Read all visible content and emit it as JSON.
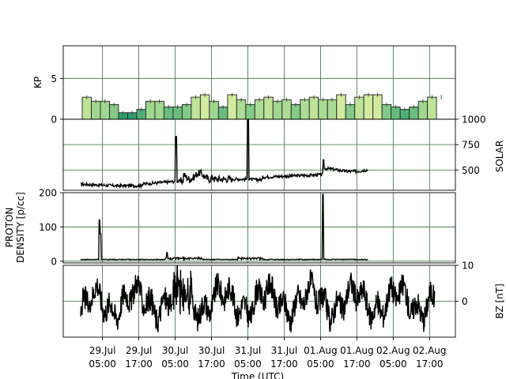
{
  "chart_data": [
    {
      "type": "bar",
      "ylabel": "KP",
      "ylim": [
        0,
        9
      ],
      "yticks": [
        0,
        5
      ],
      "grid": true,
      "bar_interval_hours": 3,
      "start_label": "28.Jul 21:00",
      "values": [
        2.7,
        2.2,
        2.2,
        1.8,
        0.8,
        0.8,
        1.2,
        2.2,
        2.2,
        1.5,
        1.5,
        1.8,
        2.7,
        3.0,
        2.2,
        1.5,
        3.0,
        2.4,
        1.8,
        2.4,
        2.7,
        2.2,
        2.4,
        1.8,
        2.4,
        2.7,
        2.4,
        2.4,
        3.0,
        1.8,
        2.7,
        3.0,
        3.0,
        1.8,
        1.5,
        1.2,
        1.5,
        2.2,
        2.7
      ],
      "color_scale": {
        "low": "#2e9d6e",
        "mid": "#8fd18a",
        "high": "#d8eda0"
      }
    },
    {
      "type": "line",
      "ylabel": "SOLAR",
      "ylim": [
        300,
        1000
      ],
      "yticks": [
        500,
        750,
        1000
      ],
      "grid": true,
      "color": "#000000"
    },
    {
      "type": "line",
      "ylabel": "PROTON\nDENSITY [p/cc]",
      "ylim": [
        -5,
        200
      ],
      "yticks": [
        0,
        100,
        200
      ],
      "grid": true,
      "color": "#000000"
    },
    {
      "type": "line",
      "ylabel": "BZ [nT]",
      "ylim": [
        -10,
        10
      ],
      "yticks": [
        0,
        10
      ],
      "grid": true,
      "color": "#000000"
    }
  ],
  "x_axis": {
    "xlabel": "Time (UTC)",
    "ticks": [
      {
        "line1": "29.Jul",
        "line2": "05:00"
      },
      {
        "line1": "29.Jul",
        "line2": "17:00"
      },
      {
        "line1": "30.Jul",
        "line2": "05:00"
      },
      {
        "line1": "30.Jul",
        "line2": "17:00"
      },
      {
        "line1": "31.Jul",
        "line2": "05:00"
      },
      {
        "line1": "31.Jul",
        "line2": "17:00"
      },
      {
        "line1": "01.Aug",
        "line2": "05:00"
      },
      {
        "line1": "01.Aug",
        "line2": "17:00"
      },
      {
        "line1": "02.Aug",
        "line2": "05:00"
      },
      {
        "line1": "02.Aug",
        "line2": "17:00"
      }
    ]
  },
  "colors": {
    "grid": "#3d6b3d",
    "line": "#000000"
  }
}
